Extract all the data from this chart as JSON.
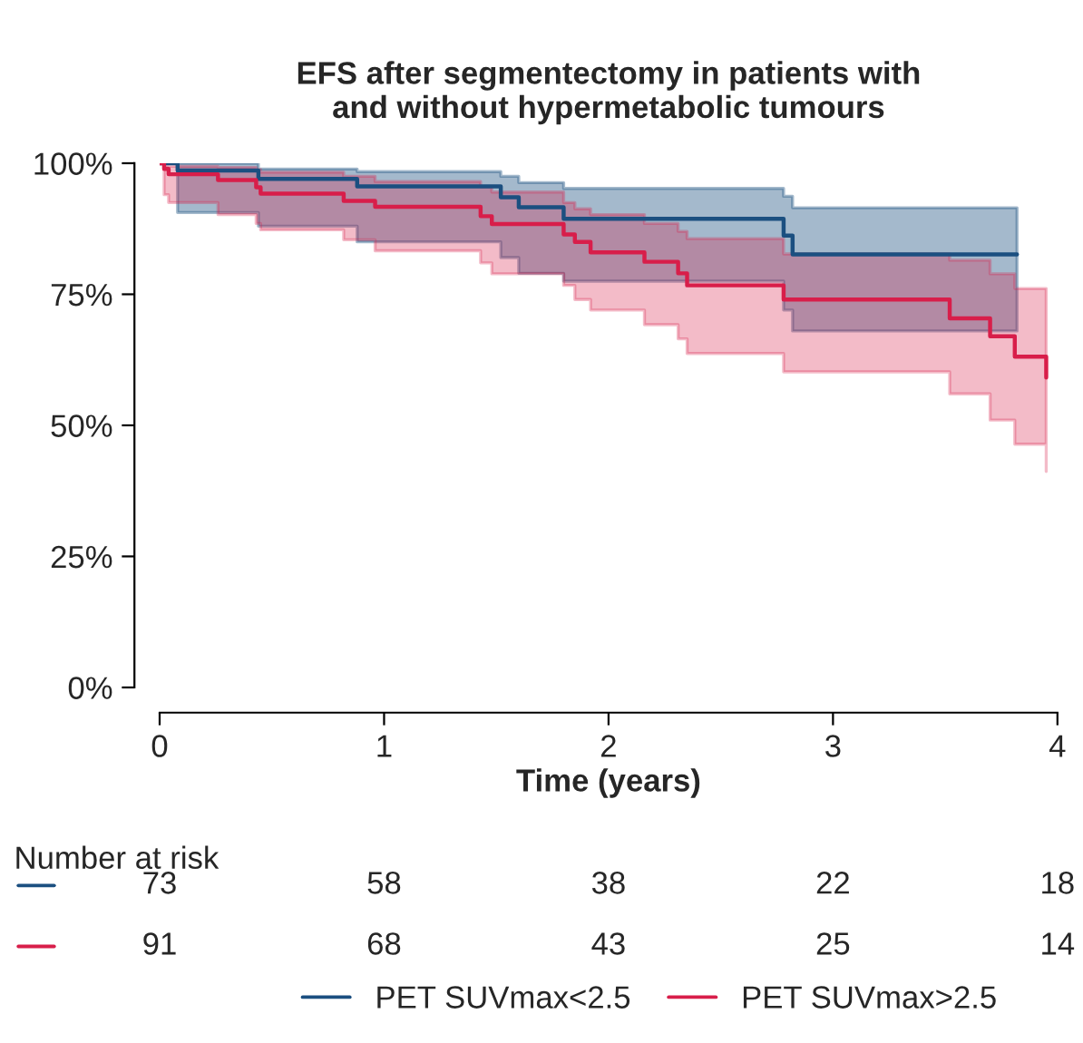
{
  "chart_data": {
    "type": "step",
    "title": "EFS after segmentectomy in patients with\nand without hypermetabolic tumours",
    "xlabel": "Time (years)",
    "xlim": [
      0,
      4
    ],
    "xticks": [
      0,
      1,
      2,
      3,
      4
    ],
    "ylim": [
      0,
      100
    ],
    "yticks": [
      {
        "value": 0,
        "label": "0%"
      },
      {
        "value": 25,
        "label": "25%"
      },
      {
        "value": 50,
        "label": "50%"
      },
      {
        "value": 75,
        "label": "75%"
      },
      {
        "value": 100,
        "label": "100%"
      }
    ],
    "series": [
      {
        "name": "PET SUVmax<2.5",
        "color": "#1b4f80",
        "x": [
          0,
          0.08,
          0.44,
          0.88,
          1.52,
          1.6,
          1.8,
          2.78,
          2.82,
          3.82
        ],
        "values": [
          100,
          98.6,
          97.0,
          95.6,
          93.5,
          91.6,
          89.4,
          86.2,
          82.6,
          82.6
        ],
        "upper": [
          100,
          100,
          98.9,
          98.4,
          97.5,
          96.3,
          95.2,
          93.7,
          91.5,
          91.5
        ],
        "lower": [
          100,
          90.6,
          88,
          85,
          82,
          79,
          77.5,
          72,
          68,
          68
        ]
      },
      {
        "name": "PET SUVmax>2.5",
        "color": "#d81e4a",
        "x": [
          0,
          0.02,
          0.04,
          0.26,
          0.43,
          0.45,
          0.82,
          0.96,
          1.43,
          1.48,
          1.8,
          1.85,
          1.92,
          2.16,
          2.31,
          2.35,
          2.78,
          3.52,
          3.7,
          3.81,
          3.95
        ],
        "values": [
          100,
          98.9,
          97.9,
          96.8,
          95.4,
          94.2,
          92.8,
          91.7,
          89.9,
          88.4,
          86.4,
          85.0,
          83.0,
          81.2,
          79.0,
          76.7,
          74.0,
          70.4,
          67.0,
          63.1,
          59.1
        ],
        "upper": [
          100,
          99.5,
          99.4,
          99.2,
          98.8,
          98.3,
          97.5,
          96.5,
          95.5,
          94.5,
          92.5,
          91.3,
          90.2,
          88.5,
          87,
          85.6,
          82.7,
          81.5,
          78.9,
          76.1,
          73
        ],
        "lower": [
          100,
          94,
          92.5,
          90.2,
          88.5,
          87.3,
          85.4,
          83.3,
          81.0,
          78.9,
          76.7,
          74.0,
          72.0,
          69.2,
          66.5,
          63.7,
          60.2,
          56.0,
          51.0,
          46.4,
          41.2
        ]
      }
    ],
    "annotations": [
      "Number at risk",
      "73",
      "58",
      "38",
      "22",
      "18",
      "91",
      "68",
      "43",
      "25",
      "14"
    ],
    "legend": "bottom",
    "grid": false
  }
}
